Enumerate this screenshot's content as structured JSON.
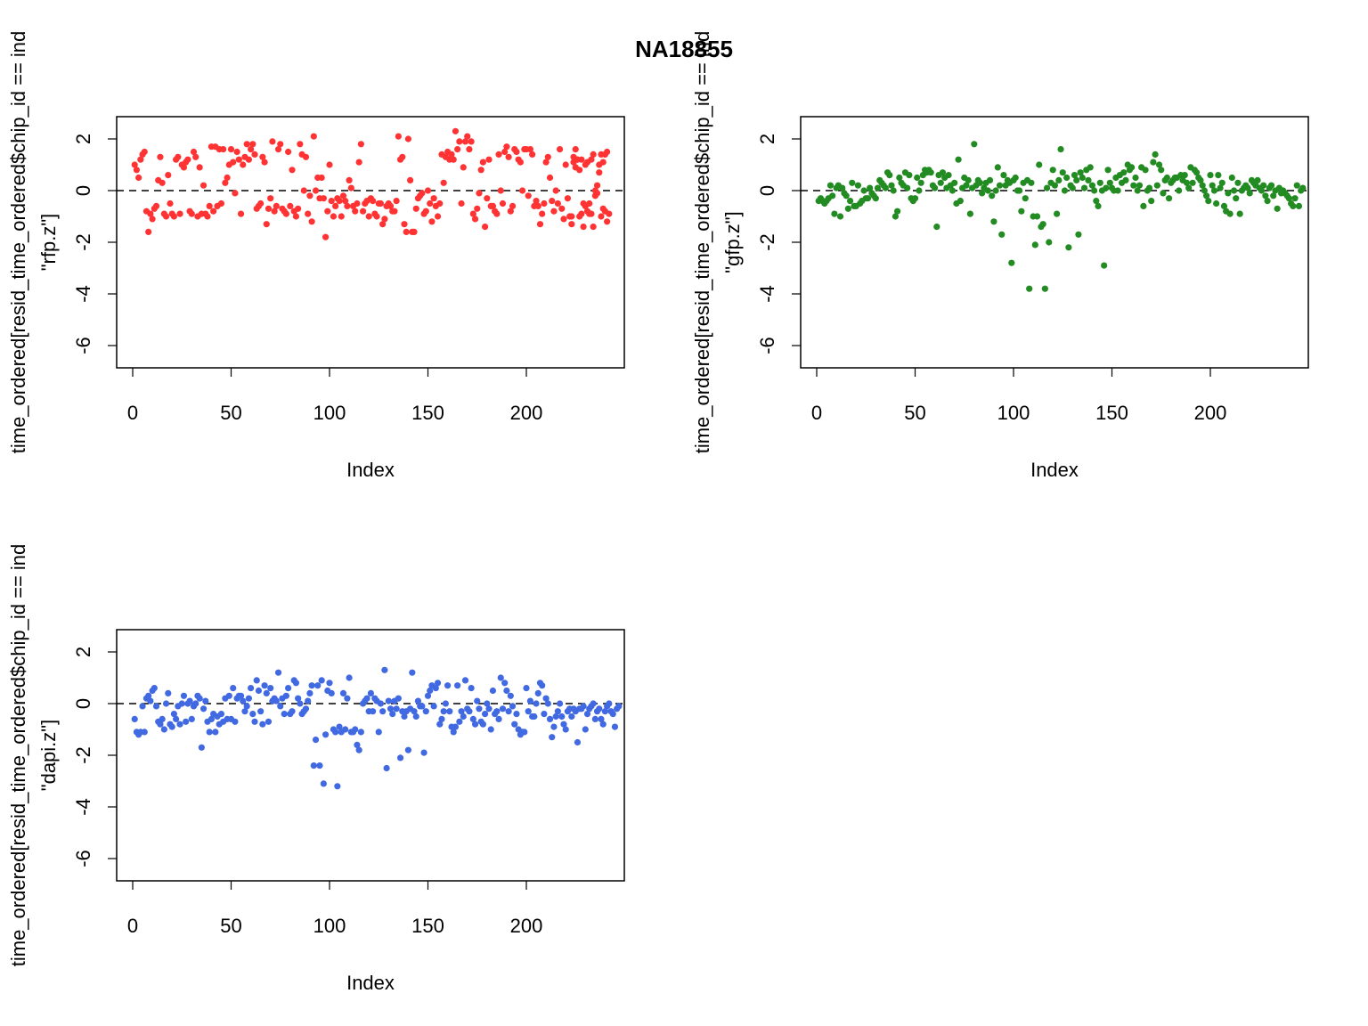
{
  "figure": {
    "title": "NA18855"
  },
  "chart_data": [
    {
      "type": "scatter",
      "panel": "top-left",
      "xlabel": "Index",
      "ylabel_line1": "time_ordered[resid_time_ordered$chip_id == ind",
      "ylabel_line2": "\"rfp.z\"]",
      "xlim": [
        0,
        242
      ],
      "ylim": [
        -7,
        2.8
      ],
      "xticks": [
        0,
        50,
        100,
        150,
        200
      ],
      "yticks": [
        -6,
        -4,
        -2,
        0,
        2
      ],
      "ref_line": 0,
      "color": "#ff3333",
      "y": [
        1.0,
        0.8,
        0.5,
        1.2,
        1.4,
        1.5,
        -0.8,
        -1.6,
        -0.9,
        -1.1,
        -0.7,
        -0.6,
        0.4,
        1.3,
        0.3,
        -0.9,
        -1.0,
        0.6,
        -0.5,
        -0.9,
        -1.0,
        1.2,
        1.3,
        -0.9,
        1.0,
        0.9,
        1.1,
        1.2,
        -0.8,
        -0.9,
        1.5,
        1.3,
        -1.0,
        0.9,
        -0.9,
        0.2,
        -0.9,
        -1.0,
        -0.6,
        1.7,
        -0.8,
        1.7,
        -0.6,
        1.6,
        -0.5,
        1.6,
        0.3,
        0.5,
        1.0,
        1.6,
        1.1,
        -0.1,
        1.5,
        1.2,
        -0.9,
        1.0,
        1.3,
        1.8,
        1.2,
        1.6,
        1.8,
        1.4,
        -0.7,
        -0.6,
        -0.5,
        1.3,
        1.1,
        -1.3,
        -0.7,
        -0.3,
        1.9,
        -0.8,
        -0.6,
        1.6,
        1.8,
        -0.7,
        -0.8,
        -0.9,
        1.5,
        -0.6,
        0.8,
        -0.8,
        -1.0,
        -0.7,
        1.8,
        1.4,
        0.0,
        1.3,
        -0.9,
        -0.2,
        -1.2,
        2.1,
        0.0,
        0.5,
        -0.3,
        0.5,
        -0.3,
        -1.8,
        -0.8,
        1.0,
        -0.4,
        -1.0,
        -0.6,
        -0.3,
        -0.4,
        -1.0,
        -0.2,
        -0.4,
        -0.6,
        0.4,
        0.1,
        -0.6,
        -0.8,
        -0.5,
        1.1,
        1.8,
        -0.8,
        -0.5,
        -0.4,
        -1.0,
        -0.3,
        -0.4,
        -0.9,
        -1.0,
        -0.5,
        -0.5,
        -1.3,
        -1.1,
        -0.6,
        -0.5,
        -0.6,
        -0.8,
        -0.8,
        -0.4,
        2.1,
        1.2,
        1.3,
        -1.3,
        -1.6,
        2.0,
        0.4,
        -1.6,
        -1.6,
        -0.7,
        -0.3,
        -0.2,
        -0.1,
        -0.9,
        -0.8,
        0.0,
        -0.5,
        -1.2,
        -0.3,
        -0.6,
        -1.0,
        -0.5,
        1.4,
        0.3,
        1.3,
        1.5,
        1.2,
        1.4,
        1.2,
        2.3,
        1.6,
        1.9,
        -0.5,
        0.9,
        1.9,
        2.1,
        1.6,
        1.9,
        -0.9,
        -1.1,
        -0.7,
        -0.1,
        0.8,
        1.1,
        -1.4,
        -0.3,
        1.2,
        -0.6,
        -0.6,
        -0.8,
        -0.9,
        1.4,
        0.0,
        -0.5,
        1.5,
        1.7,
        1.3,
        -0.8,
        -0.6,
        1.6,
        1.5,
        1.2,
        1.1,
        0.0,
        1.6,
        1.6,
        -0.2,
        1.6,
        1.4,
        -0.6,
        -0.4,
        -0.6,
        -1.3,
        -0.9,
        -0.5,
        1.1,
        1.3,
        0.5,
        -0.4,
        -0.8,
        0.0,
        -0.5,
        1.6,
        -0.7,
        -1.1,
        1.0,
        -0.3,
        -1.0,
        -1.3,
        1.1,
        1.6,
        1.2,
        0.8,
        1.2,
        -0.5,
        -0.6,
        1.1,
        -0.9,
        1.2,
        -1.4,
        -0.2,
        -0.1,
        0.7,
        1.4,
        -0.7,
        -0.8,
        1.5
      ],
      "y2": [
        -1.0,
        1.3,
        0.9,
        1.2,
        -1.0,
        -0.9,
        -1.4,
        1.0,
        -0.8,
        -0.5,
        -0.9,
        1.4,
        0.0,
        0.2,
        1.0,
        -1.0,
        1.1,
        1.4,
        -1.2,
        -0.9
      ],
      "x2": [
        223,
        224,
        225,
        226,
        227,
        228,
        229,
        230,
        231,
        232,
        233,
        234,
        235,
        236,
        237,
        238,
        239,
        240,
        241,
        242
      ]
    },
    {
      "type": "scatter",
      "panel": "top-right",
      "xlabel": "Index",
      "ylabel_line1": "time_ordered[resid_time_ordered$chip_id == ind",
      "ylabel_line2": "\"gfp.z\"]",
      "xlim": [
        0,
        242
      ],
      "ylim": [
        -7,
        2.8
      ],
      "xticks": [
        0,
        50,
        100,
        150,
        200
      ],
      "yticks": [
        -6,
        -4,
        -2,
        0,
        2
      ],
      "ref_line": 0,
      "color": "#228b22",
      "y": [
        -0.4,
        -0.3,
        -0.4,
        -0.5,
        -0.4,
        -0.3,
        0.2,
        -0.2,
        -0.9,
        0.1,
        0.2,
        -1.0,
        0.1,
        -0.1,
        -0.2,
        -0.7,
        -0.4,
        0.3,
        -0.6,
        -0.6,
        0.2,
        -0.5,
        -0.4,
        0.0,
        -0.3,
        -0.3,
        0.1,
        -0.1,
        -0.2,
        -0.3,
        0.1,
        0.4,
        0.3,
        0.2,
        0.1,
        0.7,
        0.6,
        0.2,
        0.0,
        -1.0,
        -0.8,
        0.5,
        0.3,
        0.2,
        0.7,
        0.1,
        0.6,
        -0.3,
        -0.4,
        -0.3,
        0.5,
        0.0,
        0.3,
        0.6,
        0.8,
        0.7,
        0.8,
        0.7,
        0.2,
        0.1,
        -1.4,
        0.6,
        0.3,
        0.7,
        0.5,
        0.1,
        0.6,
        0.2,
        0.0,
        0.3,
        -0.5,
        1.2,
        -0.4,
        0.1,
        0.5,
        0.2,
        0.4,
        -0.9,
        0.1,
        1.8,
        0.2,
        0.4,
        0.3,
        -0.1,
        0.1,
        0.3,
        0.0,
        0.4,
        -0.2,
        -1.2,
        0.0,
        0.9,
        0.2,
        -1.7,
        0.6,
        0.2,
        0.4,
        0.3,
        -2.8,
        0.4,
        0.5,
        0.0,
        0.0,
        -0.8,
        0.3,
        -0.3,
        0.4,
        -3.8,
        0.3,
        -1.0,
        -2.1,
        -1.0,
        1.0,
        -1.4,
        -1.3,
        -3.8,
        0.1,
        -2.0,
        0.3,
        0.8,
        0.2,
        -0.9,
        0.4,
        1.6,
        0.7,
        0.0,
        0.5,
        -2.2,
        0.2,
        0.1,
        0.6,
        0.4,
        -1.7,
        0.7,
        0.5,
        0.1,
        0.8,
        0.4,
        0.9,
        0.2,
        0.0,
        -0.4,
        -0.6,
        0.3,
        0.0,
        -2.9,
        0.1,
        0.8,
        0.3,
        0.1,
        0.0,
        0.5,
        0.0,
        0.6,
        0.3,
        0.7,
        0.4,
        1.0,
        0.8,
        0.9,
        0.2,
        0.5,
        0.0,
        0.2,
        0.9,
        -0.6,
        0.8,
        0.0,
        0.1,
        -0.4,
        1.1,
        1.4,
        0.2,
        1.0,
        0.8,
        -0.1,
        0.4,
        0.5,
        -0.3,
        0.3,
        0.4,
        0.5,
        0.5,
        0.0,
        0.6,
        0.4,
        0.6,
        0.3,
        0.1,
        0.9,
        0.3,
        0.8,
        0.7,
        0.5,
        0.4,
        0.2,
        0.0,
        -0.2,
        -0.4,
        0.6,
        0.2,
        0.0,
        -0.5,
        0.6,
        0.1,
        0.3,
        -0.6,
        -0.8,
        -0.1,
        -0.9,
        0.5,
        0.0,
        -0.3,
        0.3,
        -0.9,
        0.0,
        0.1,
        0.2,
        0.1,
        -0.1,
        0.4,
        0.3,
        0.2,
        0.4,
        0.1,
        0.0,
        0.2,
        -0.2,
        -0.4,
        0.1,
        0.2,
        -0.2,
        0.0,
        -0.7,
        0.1,
        -0.1,
        0.0,
        -0.1,
        -0.2,
        -0.3,
        -0.5,
        -0.6,
        -0.3,
        0.2,
        -0.6,
        0.0,
        0.1,
        -0.1,
        0.0,
        -0.2,
        0.2,
        -0.3,
        0.1,
        0.0
      ]
    },
    {
      "type": "scatter",
      "panel": "bottom-left",
      "xlabel": "Index",
      "ylabel_line1": "time_ordered[resid_time_ordered$chip_id == ind",
      "ylabel_line2": "\"dapi.z\"]",
      "xlim": [
        0,
        242
      ],
      "ylim": [
        -7,
        2.8
      ],
      "xticks": [
        0,
        50,
        100,
        150,
        200
      ],
      "yticks": [
        -6,
        -4,
        -2,
        0,
        2
      ],
      "ref_line": 0,
      "color": "#4169e1",
      "y": [
        -0.6,
        -1.1,
        -1.2,
        -1.1,
        -0.1,
        -1.1,
        0.2,
        0.3,
        0.1,
        0.5,
        0.6,
        -0.1,
        -0.7,
        -0.8,
        -0.6,
        -1.0,
        0.0,
        0.4,
        -0.8,
        -0.9,
        -0.4,
        -0.6,
        -0.1,
        -0.8,
        0.0,
        0.3,
        -0.7,
        0.0,
        0.1,
        -0.6,
        -0.1,
        0.0,
        0.3,
        0.2,
        -1.7,
        -0.2,
        0.1,
        -0.7,
        -1.1,
        -0.6,
        -0.4,
        -1.1,
        -0.5,
        -0.8,
        -0.4,
        -0.7,
        0.2,
        -0.6,
        0.3,
        -0.6,
        0.6,
        -0.7,
        0.2,
        0.3,
        0.3,
        0.1,
        -0.3,
        -0.1,
        0.2,
        0.6,
        -0.4,
        -0.7,
        0.9,
        0.5,
        -0.3,
        -0.8,
        0.7,
        0.4,
        -0.7,
        0.6,
        0.1,
        0.2,
        0.1,
        1.2,
        -0.1,
        0.2,
        -0.4,
        0.3,
        0.6,
        -0.4,
        -0.3,
        0.9,
        0.8,
        0.2,
        0.0,
        -0.4,
        -0.3,
        -0.2,
        0.1,
        0.4,
        0.7,
        -2.4,
        -1.4,
        0.7,
        -2.4,
        0.9,
        -3.1,
        -1.2,
        0.5,
        0.8,
        0.4,
        -1.0,
        -1.1,
        -3.2,
        -0.9,
        -1.1,
        0.4,
        -1.0,
        0.2,
        1.0,
        -1.1,
        -1.1,
        -1.0,
        -1.6,
        -1.8,
        -1.1,
        0.0,
        0.1,
        0.2,
        -0.3,
        0.4,
        -0.3,
        0.2,
        0.1,
        -1.1,
        0.0,
        -0.3,
        1.3,
        -2.5,
        0.1,
        -0.2,
        -0.4,
        0.1,
        -0.2,
        0.2,
        -2.1,
        -0.3,
        -0.5,
        -0.3,
        -1.8,
        -0.2,
        1.2,
        -0.3,
        -0.5,
        0.1,
        -0.1,
        -0.1,
        -1.9,
        -0.3,
        0.3,
        0.5,
        0.7,
        -0.1,
        0.6,
        0.8,
        -0.8,
        -0.6,
        -0.3,
        0.0,
        0.7,
        -0.3,
        -0.9,
        -1.1,
        -0.9,
        0.7,
        -0.7,
        -0.3,
        -0.5,
        0.9,
        -0.2,
        -0.3,
        0.6,
        -0.6,
        -0.8,
        0.1,
        -0.2,
        -0.7,
        -0.8,
        -0.4,
        0.0,
        -0.2,
        -1.0,
        0.5,
        -0.4,
        -0.3,
        -0.6,
        1.0,
        -0.2,
        0.8,
        0.5,
        -0.3,
        0.3,
        -0.1,
        -0.8,
        -0.4,
        -1.0,
        -1.2,
        -1.1,
        -1.1,
        0.6,
        -0.3,
        0.1,
        -0.5,
        -0.5,
        0.0,
        0.4,
        0.8,
        0.7,
        -0.4,
        0.2,
        0.0,
        -0.6,
        -1.3,
        -0.9,
        -0.5,
        -0.3,
        0.0,
        -0.5,
        -0.8,
        -1.0,
        -0.3,
        -0.2,
        -0.5,
        -0.2,
        -0.3,
        -1.5,
        -0.2,
        -0.2,
        -0.1,
        -1.0,
        -0.4,
        -0.2,
        -0.1,
        0.0,
        -0.6,
        -0.3,
        -0.2,
        -0.6,
        -0.8,
        -0.3,
        -0.1,
        0.0,
        -0.3,
        -0.4,
        -0.9,
        -0.2,
        -0.1,
        0.0,
        -0.2,
        -0.4,
        -1.0,
        -0.5,
        -0.8,
        -0.2,
        -0.1,
        0.0,
        -0.3,
        -0.5,
        -0.2
      ]
    }
  ]
}
